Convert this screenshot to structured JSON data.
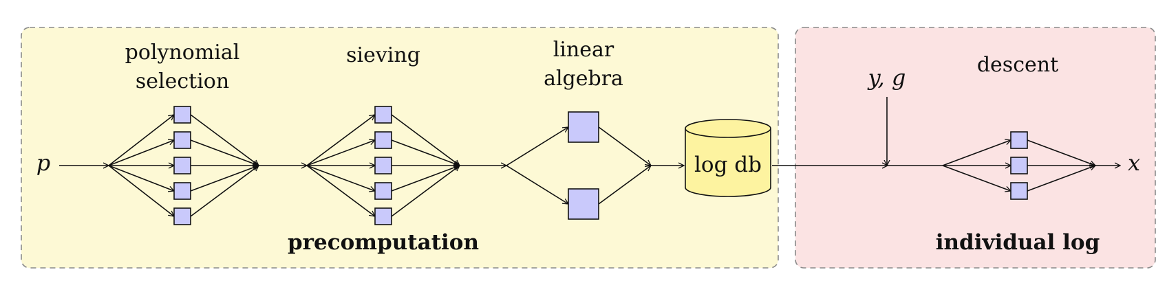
{
  "colors": {
    "precomputation_bg": "#fdf9d5",
    "individual_bg": "#fbe3e3",
    "node_fill": "#c9c9fb",
    "db_fill": "#fdf3a0",
    "panel_border": "#8a8a8a"
  },
  "panels": {
    "precomputation": {
      "title": "precomputation"
    },
    "individual": {
      "title": "individual log"
    }
  },
  "stages": {
    "polynomial_selection": {
      "line1": "polynomial",
      "line2": "selection",
      "nodes": 5
    },
    "sieving": {
      "label": "sieving",
      "nodes": 5
    },
    "linear_algebra": {
      "line1": "linear",
      "line2": "algebra",
      "nodes": 2
    },
    "descent": {
      "label": "descent",
      "nodes": 3
    }
  },
  "database": {
    "label": "log db"
  },
  "inputs": {
    "p": "p",
    "yg": "y, g"
  },
  "output": {
    "x": "x"
  }
}
